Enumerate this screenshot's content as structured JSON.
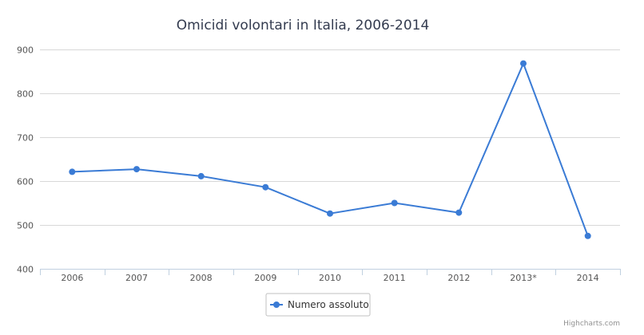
{
  "chart_data": {
    "type": "line",
    "title": "Omicidi volontari in Italia, 2006-2014",
    "categories": [
      "2006",
      "2007",
      "2008",
      "2009",
      "2010",
      "2011",
      "2012",
      "2013*",
      "2014"
    ],
    "series": [
      {
        "name": "Numero assoluto",
        "values": [
          621,
          627,
          611,
          586,
          526,
          550,
          528,
          868,
          475
        ],
        "color": "#3a7bd5"
      }
    ],
    "ylim": [
      400,
      900
    ],
    "yticks": [
      "400",
      "500",
      "600",
      "700",
      "800",
      "900"
    ],
    "grid": true,
    "legend_position": "bottom-center"
  },
  "credits": "Highcharts.com"
}
